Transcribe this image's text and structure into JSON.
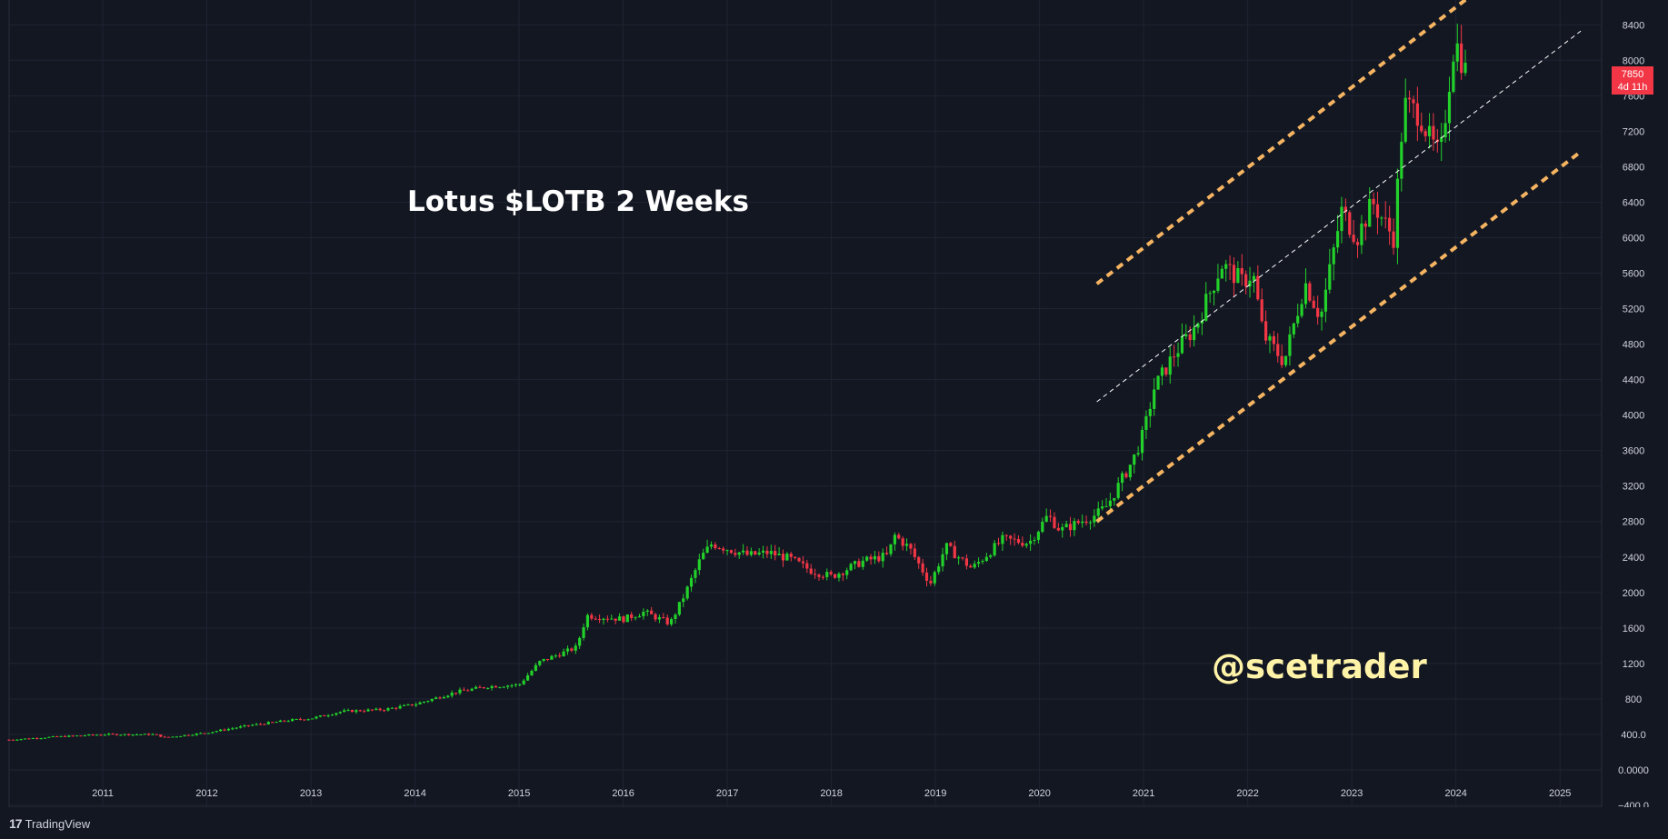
{
  "title": "Lotus $LOTB 2 Weeks",
  "watermark": "@scetrader",
  "price_badge": {
    "price": "7850",
    "countdown": "4d 11h",
    "color": "#f23645"
  },
  "footer": {
    "brand_logo": "17",
    "brand_name": "TradingView"
  },
  "colors": {
    "background": "#131722",
    "grid": "#1f2433",
    "up": "#22d12a",
    "down": "#f23645",
    "channel": "#f5b461",
    "midline": "#ffffff"
  },
  "chart_data": {
    "type": "candlestick",
    "title": "Lotus $LOTB 2 Weeks",
    "xlabel": "",
    "ylabel": "",
    "x_ticks": [
      "2011",
      "2012",
      "2013",
      "2014",
      "2015",
      "2016",
      "2017",
      "2018",
      "2019",
      "2020",
      "2021",
      "2022",
      "2023",
      "2024",
      "2025"
    ],
    "y_ticks": [
      "8400",
      "8000",
      "7600",
      "7200",
      "6800",
      "6400",
      "6000",
      "5600",
      "5200",
      "4800",
      "4400",
      "4000",
      "3600",
      "3200",
      "2800",
      "2400",
      "2000",
      "1600",
      "1200",
      "800",
      "400.0",
      "0.0000",
      "−400.0"
    ],
    "xlim": [
      2010.1,
      2025.4
    ],
    "ylim": [
      -400,
      8700
    ],
    "grid": true,
    "anchors": [
      [
        2010.1,
        340
      ],
      [
        2010.5,
        370
      ],
      [
        2011.0,
        400
      ],
      [
        2011.5,
        400
      ],
      [
        2011.6,
        365
      ],
      [
        2012.0,
        420
      ],
      [
        2012.4,
        500
      ],
      [
        2012.8,
        560
      ],
      [
        2013.0,
        580
      ],
      [
        2013.3,
        660
      ],
      [
        2013.7,
        680
      ],
      [
        2014.0,
        740
      ],
      [
        2014.4,
        880
      ],
      [
        2014.7,
        940
      ],
      [
        2015.0,
        960
      ],
      [
        2015.2,
        1220
      ],
      [
        2015.55,
        1380
      ],
      [
        2015.65,
        1740
      ],
      [
        2016.0,
        1700
      ],
      [
        2016.2,
        1780
      ],
      [
        2016.45,
        1650
      ],
      [
        2016.6,
        2000
      ],
      [
        2016.75,
        2400
      ],
      [
        2016.85,
        2550
      ],
      [
        2017.2,
        2420
      ],
      [
        2017.4,
        2450
      ],
      [
        2017.6,
        2380
      ],
      [
        2017.8,
        2250
      ],
      [
        2018.0,
        2180
      ],
      [
        2018.3,
        2350
      ],
      [
        2018.55,
        2420
      ],
      [
        2018.6,
        2650
      ],
      [
        2018.75,
        2500
      ],
      [
        2018.95,
        2100
      ],
      [
        2019.1,
        2520
      ],
      [
        2019.35,
        2270
      ],
      [
        2019.65,
        2600
      ],
      [
        2019.9,
        2560
      ],
      [
        2020.08,
        2870
      ],
      [
        2020.2,
        2700
      ],
      [
        2020.55,
        2880
      ],
      [
        2020.65,
        2980
      ],
      [
        2020.9,
        3500
      ],
      [
        2021.0,
        3800
      ],
      [
        2021.1,
        4300
      ],
      [
        2021.3,
        4700
      ],
      [
        2021.5,
        5000
      ],
      [
        2021.75,
        5700
      ],
      [
        2021.95,
        5500
      ],
      [
        2022.05,
        5600
      ],
      [
        2022.15,
        4900
      ],
      [
        2022.35,
        4600
      ],
      [
        2022.55,
        5500
      ],
      [
        2022.7,
        5100
      ],
      [
        2022.9,
        6300
      ],
      [
        2023.05,
        6000
      ],
      [
        2023.2,
        6400
      ],
      [
        2023.4,
        6000
      ],
      [
        2023.5,
        7500
      ],
      [
        2023.65,
        7400
      ],
      [
        2023.75,
        7100
      ],
      [
        2023.85,
        6900
      ],
      [
        2023.92,
        7600
      ],
      [
        2023.97,
        8100
      ],
      [
        2024.0,
        8200
      ],
      [
        2024.1,
        7850
      ]
    ],
    "annotations": [
      {
        "type": "channel_upper",
        "style": "dashed",
        "color": "#f5b461",
        "from": [
          2020.55,
          5480
        ],
        "to": [
          2024.2,
          8780
        ]
      },
      {
        "type": "channel_lower",
        "style": "dashed",
        "color": "#f5b461",
        "from": [
          2020.55,
          2800
        ],
        "to": [
          2025.2,
          6970
        ]
      },
      {
        "type": "channel_mid",
        "style": "dashed",
        "color": "#ffffff",
        "from": [
          2020.55,
          4150
        ],
        "to": [
          2025.2,
          8330
        ]
      }
    ],
    "last_price": 7850,
    "last_price_countdown": "4d 11h"
  }
}
